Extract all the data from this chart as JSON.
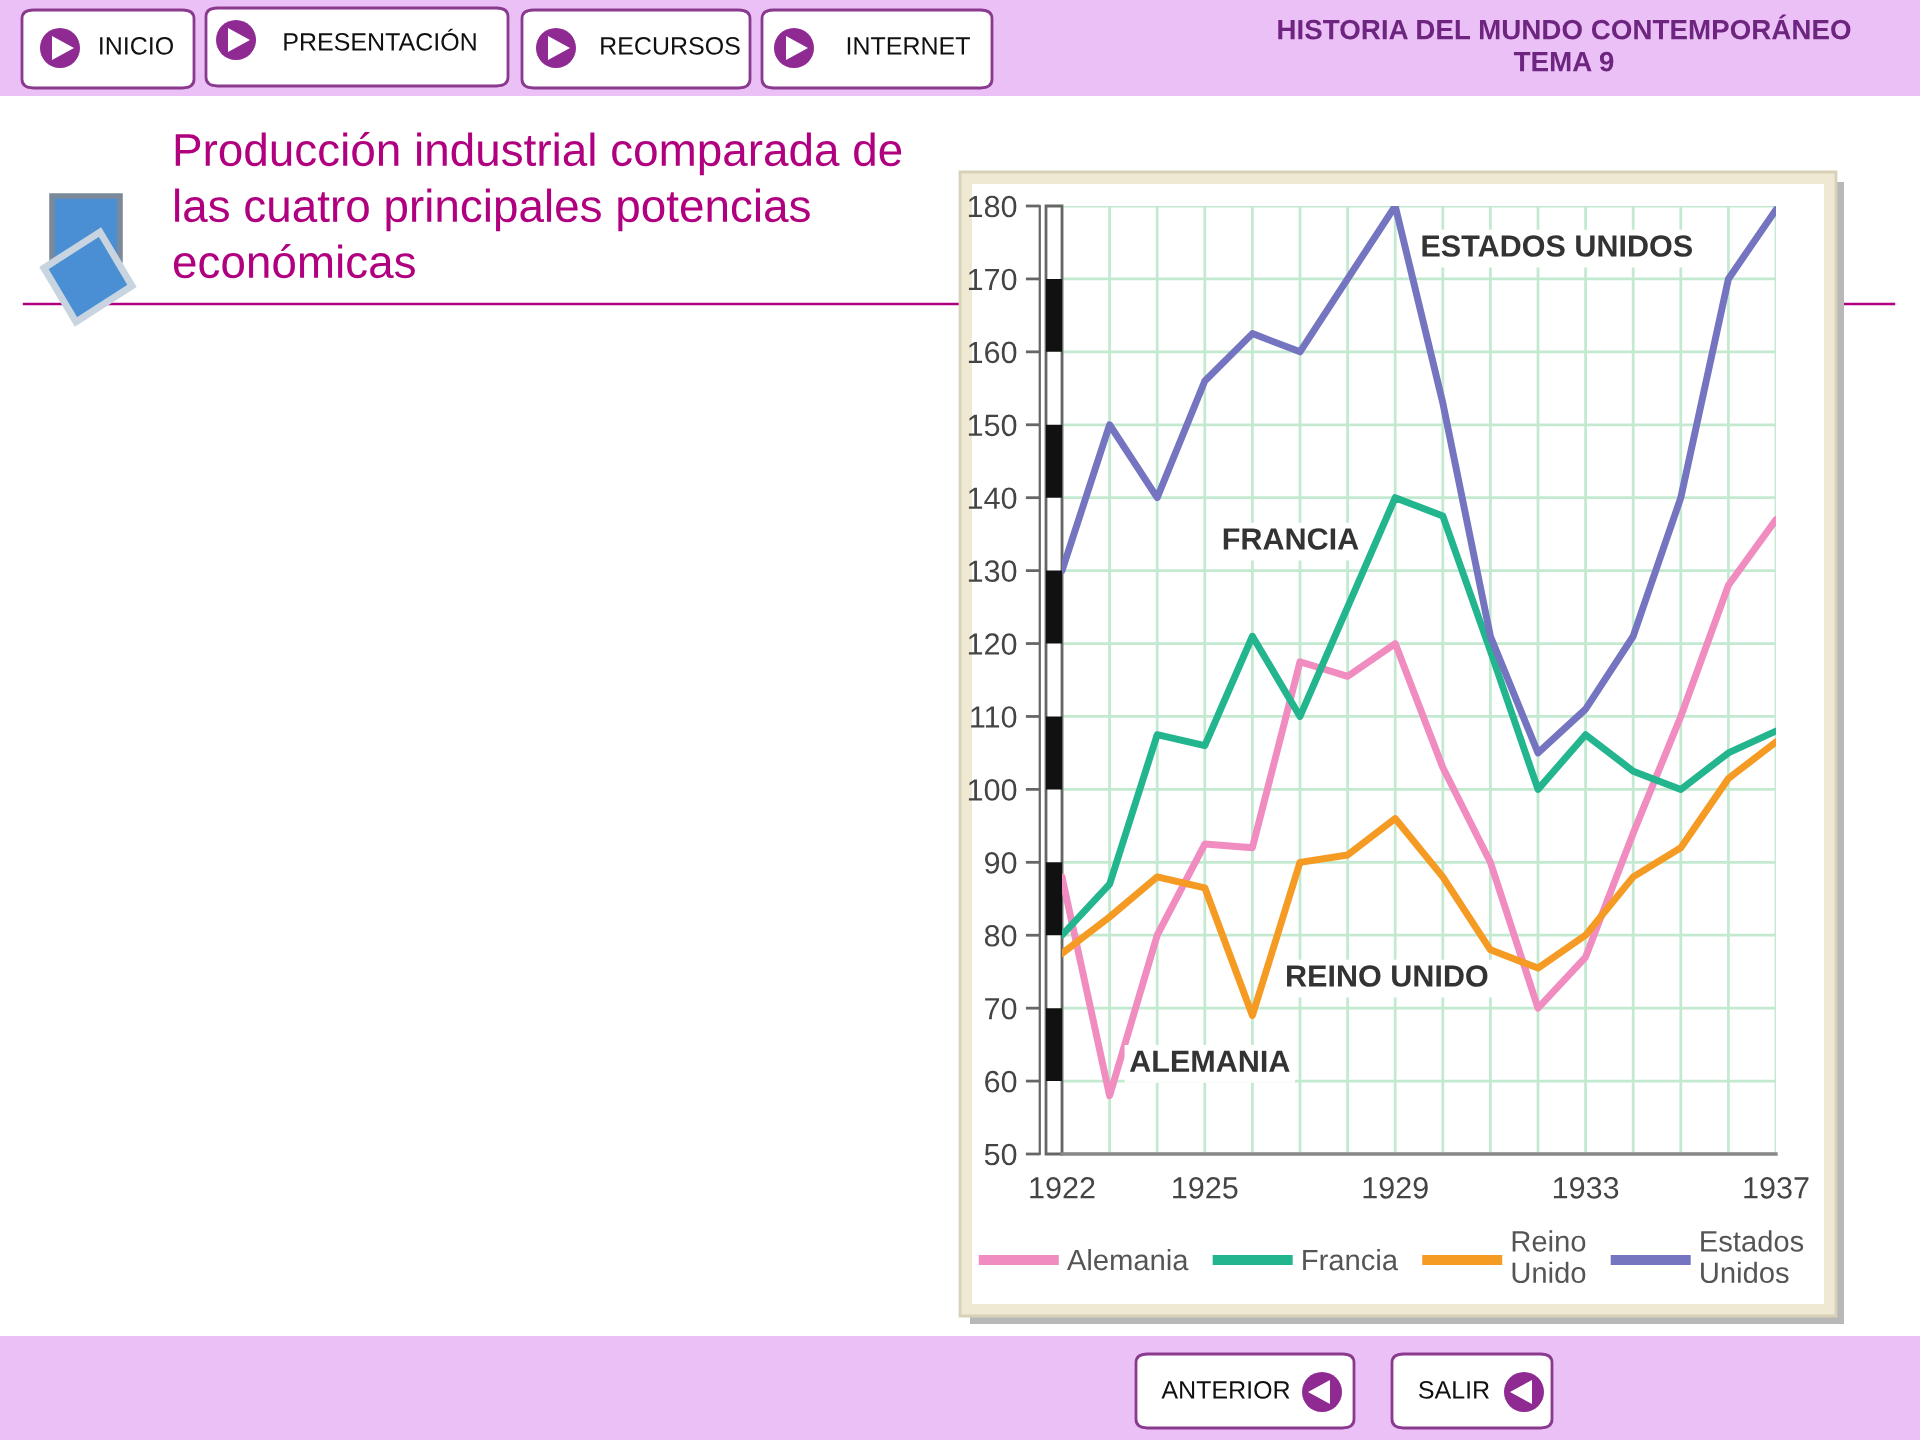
{
  "chart_data": {
    "type": "line",
    "title": "Producción industrial comparada de\nlas cuatro principales potencias\neconómicas",
    "x": [
      1922,
      1923,
      1924,
      1925,
      1926,
      1927,
      1928,
      1929,
      1930,
      1931,
      1932,
      1933,
      1934,
      1935,
      1936,
      1937
    ],
    "xlim": [
      1922,
      1937
    ],
    "xticks": [
      1922,
      {
        "value": 1923,
        "label": null
      },
      {
        "value": 1924,
        "label": null
      },
      1925,
      {
        "value": 1926,
        "label": null
      },
      {
        "value": 1927,
        "label": null
      },
      {
        "value": 1928,
        "label": null
      },
      1929,
      {
        "value": 1930,
        "label": null
      },
      {
        "value": 1931,
        "label": null
      },
      {
        "value": 1932,
        "label": null
      },
      1933,
      {
        "value": 1934,
        "label": null
      },
      {
        "value": 1935,
        "label": null
      },
      {
        "value": 1936,
        "label": null
      },
      1937
    ],
    "ylim": [
      50,
      180
    ],
    "yticks": [
      50,
      60,
      70,
      80,
      90,
      100,
      110,
      120,
      130,
      140,
      150,
      160,
      170,
      180
    ],
    "grid": true,
    "legend": "bottom",
    "series": [
      {
        "name": "Alemania",
        "color": "#f08cbf",
        "values": [
          88,
          58,
          80,
          92.5,
          92,
          117.5,
          115.5,
          120,
          103,
          90,
          70,
          77,
          94,
          110,
          128,
          137
        ]
      },
      {
        "name": "Francia",
        "color": "#23b58e",
        "values": [
          80,
          87,
          107.5,
          106,
          121,
          110,
          125,
          140,
          137.5,
          119,
          100,
          107.5,
          102.5,
          100,
          105,
          108
        ]
      },
      {
        "name": "Reino\nUnido",
        "color": "#f59a23",
        "values": [
          77.5,
          82.5,
          88,
          86.5,
          69,
          90,
          91,
          96,
          88,
          78,
          75.5,
          80,
          88,
          92,
          101.5,
          106.5
        ]
      },
      {
        "name": "Estados\nUnidos",
        "color": "#7474c0",
        "values": [
          130,
          150,
          140,
          156,
          162.5,
          160,
          170,
          180,
          153,
          121,
          105,
          111,
          121,
          140,
          170,
          179.5
        ]
      }
    ],
    "annotations": [
      "HISTORIA DEL MUNDO CONTEMPORÁNEO\nTEMA 9",
      "INICIO",
      "PRESENTACIÓN",
      "RECURSOS",
      "INTERNET",
      "ANTERIOR",
      "SALIR",
      "ESTADOS UNIDOS",
      "FRANCIA",
      "REINO UNIDO",
      "ALEMANIA"
    ]
  }
}
